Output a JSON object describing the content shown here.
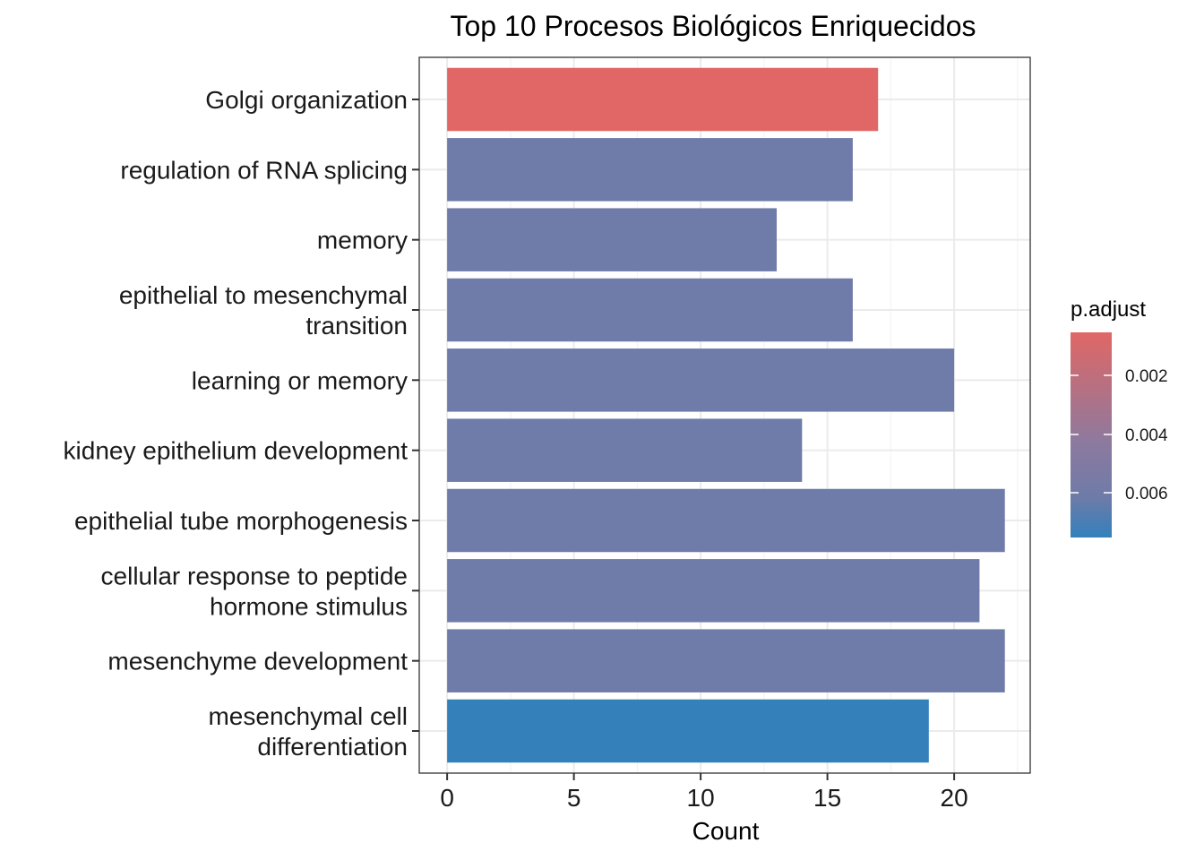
{
  "chart_data": {
    "type": "bar",
    "orientation": "horizontal",
    "title": "Top 10 Procesos Biológicos Enriquecidos",
    "xlabel": "Count",
    "ylabel": "",
    "xlim": [
      -1.1,
      23
    ],
    "x_ticks": [
      0,
      5,
      10,
      15,
      20
    ],
    "grid": true,
    "categories": [
      "Golgi organization",
      "regulation of RNA splicing",
      "memory",
      "epithelial to mesenchymal transition",
      "learning or memory",
      "kidney epithelium development",
      "epithelial tube morphogenesis",
      "cellular response to peptide hormone stimulus",
      "mesenchyme development",
      "mesenchymal cell differentiation"
    ],
    "category_lines": [
      [
        "Golgi organization"
      ],
      [
        "regulation of RNA splicing"
      ],
      [
        "memory"
      ],
      [
        "epithelial to mesenchymal",
        "transition"
      ],
      [
        "learning or memory"
      ],
      [
        "kidney epithelium development"
      ],
      [
        "epithelial tube morphogenesis"
      ],
      [
        "cellular response to peptide",
        "hormone stimulus"
      ],
      [
        "mesenchyme development"
      ],
      [
        "mesenchymal cell",
        "differentiation"
      ]
    ],
    "values": [
      17,
      16,
      13,
      16,
      20,
      14,
      22,
      21,
      22,
      19
    ],
    "colors": [
      "#e06765",
      "#6f7ba8",
      "#6f7ba8",
      "#6f7ba8",
      "#6f7ba8",
      "#6f7ba8",
      "#6f7ba8",
      "#6f7ba8",
      "#6f7ba8",
      "#3380bb"
    ],
    "legend": {
      "title": "p.adjust",
      "placement": "right",
      "ticks": [
        "0.002",
        "0.004",
        "0.006"
      ],
      "color_low": "#e06765",
      "color_high": "#3380bb"
    }
  }
}
